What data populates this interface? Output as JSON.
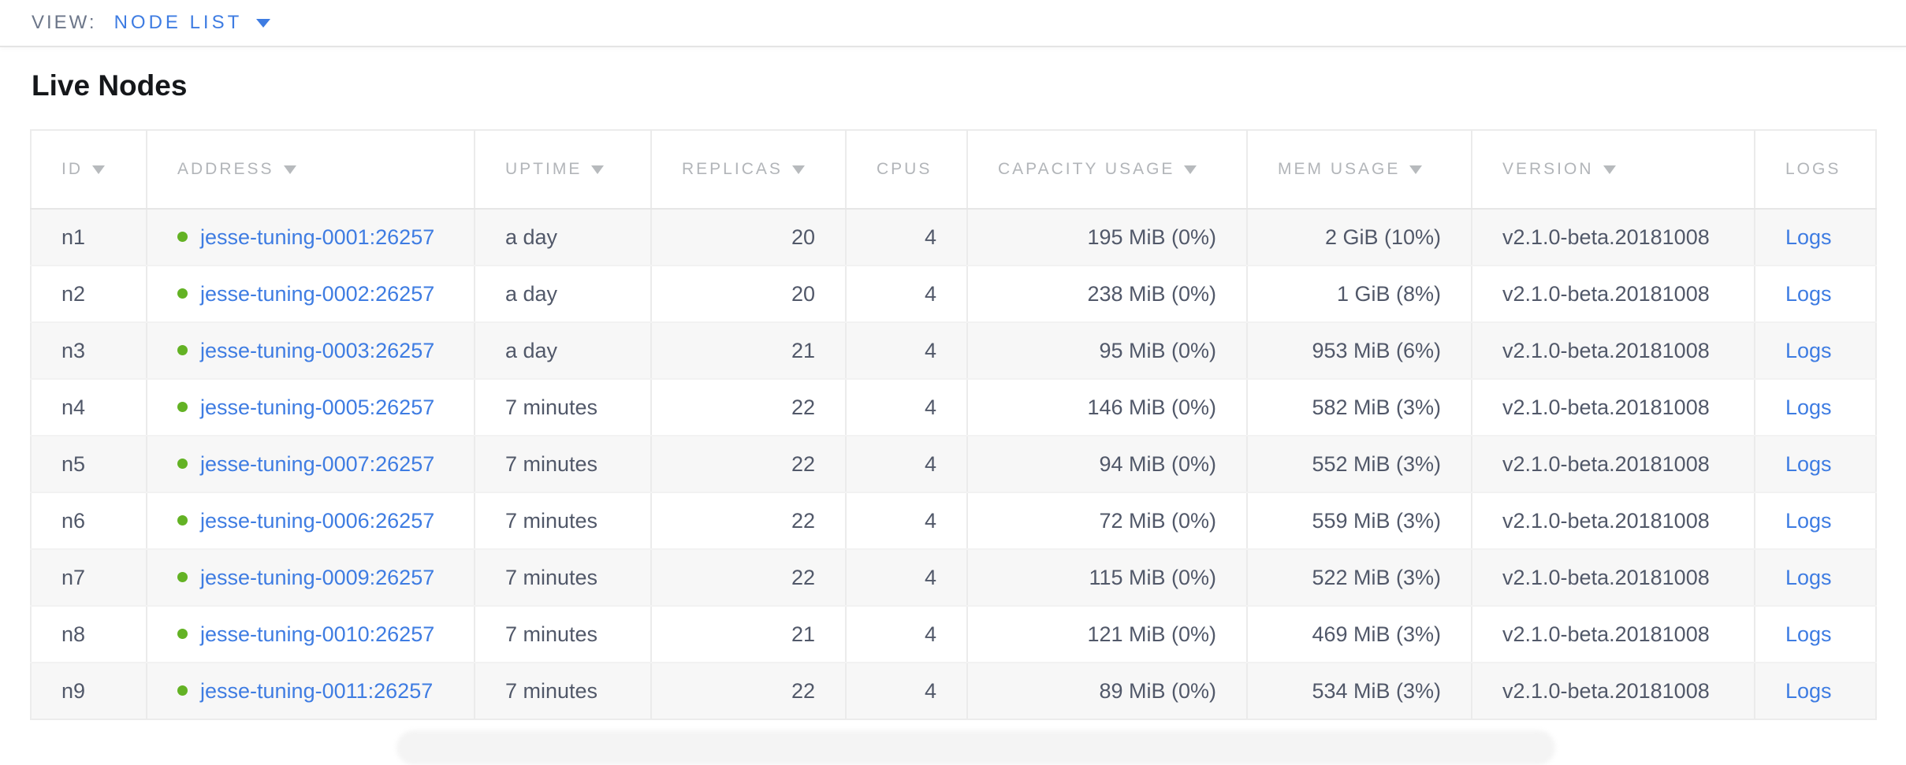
{
  "view_bar": {
    "label": "VIEW:",
    "selected": "NODE LIST"
  },
  "page": {
    "title": "Live Nodes"
  },
  "colors": {
    "accent_blue": "#3e7ce2",
    "healthy_green": "#63b224",
    "header_gray": "#b2b5b9",
    "body_text": "#515869"
  },
  "table": {
    "columns": [
      {
        "key": "id",
        "label": "ID",
        "sortable": true,
        "align": "left"
      },
      {
        "key": "address",
        "label": "ADDRESS",
        "sortable": true,
        "align": "left"
      },
      {
        "key": "uptime",
        "label": "UPTIME",
        "sortable": true,
        "align": "left"
      },
      {
        "key": "replicas",
        "label": "REPLICAS",
        "sortable": true,
        "align": "right"
      },
      {
        "key": "cpus",
        "label": "CPUS",
        "sortable": false,
        "align": "right"
      },
      {
        "key": "capacity",
        "label": "CAPACITY USAGE",
        "sortable": true,
        "align": "right"
      },
      {
        "key": "mem",
        "label": "MEM USAGE",
        "sortable": true,
        "align": "right"
      },
      {
        "key": "version",
        "label": "VERSION",
        "sortable": true,
        "align": "left"
      },
      {
        "key": "logs",
        "label": "LOGS",
        "sortable": false,
        "align": "left"
      }
    ],
    "rows": [
      {
        "id": "n1",
        "address": "jesse-tuning-0001:26257",
        "status": "healthy",
        "uptime": "a day",
        "replicas": 20,
        "cpus": 4,
        "capacity": "195 MiB (0%)",
        "mem": "2 GiB (10%)",
        "version": "v2.1.0-beta.20181008",
        "logs": "Logs"
      },
      {
        "id": "n2",
        "address": "jesse-tuning-0002:26257",
        "status": "healthy",
        "uptime": "a day",
        "replicas": 20,
        "cpus": 4,
        "capacity": "238 MiB (0%)",
        "mem": "1 GiB (8%)",
        "version": "v2.1.0-beta.20181008",
        "logs": "Logs"
      },
      {
        "id": "n3",
        "address": "jesse-tuning-0003:26257",
        "status": "healthy",
        "uptime": "a day",
        "replicas": 21,
        "cpus": 4,
        "capacity": "95 MiB (0%)",
        "mem": "953 MiB (6%)",
        "version": "v2.1.0-beta.20181008",
        "logs": "Logs"
      },
      {
        "id": "n4",
        "address": "jesse-tuning-0005:26257",
        "status": "healthy",
        "uptime": "7 minutes",
        "replicas": 22,
        "cpus": 4,
        "capacity": "146 MiB (0%)",
        "mem": "582 MiB (3%)",
        "version": "v2.1.0-beta.20181008",
        "logs": "Logs"
      },
      {
        "id": "n5",
        "address": "jesse-tuning-0007:26257",
        "status": "healthy",
        "uptime": "7 minutes",
        "replicas": 22,
        "cpus": 4,
        "capacity": "94 MiB (0%)",
        "mem": "552 MiB (3%)",
        "version": "v2.1.0-beta.20181008",
        "logs": "Logs"
      },
      {
        "id": "n6",
        "address": "jesse-tuning-0006:26257",
        "status": "healthy",
        "uptime": "7 minutes",
        "replicas": 22,
        "cpus": 4,
        "capacity": "72 MiB (0%)",
        "mem": "559 MiB (3%)",
        "version": "v2.1.0-beta.20181008",
        "logs": "Logs"
      },
      {
        "id": "n7",
        "address": "jesse-tuning-0009:26257",
        "status": "healthy",
        "uptime": "7 minutes",
        "replicas": 22,
        "cpus": 4,
        "capacity": "115 MiB (0%)",
        "mem": "522 MiB (3%)",
        "version": "v2.1.0-beta.20181008",
        "logs": "Logs"
      },
      {
        "id": "n8",
        "address": "jesse-tuning-0010:26257",
        "status": "healthy",
        "uptime": "7 minutes",
        "replicas": 21,
        "cpus": 4,
        "capacity": "121 MiB (0%)",
        "mem": "469 MiB (3%)",
        "version": "v2.1.0-beta.20181008",
        "logs": "Logs"
      },
      {
        "id": "n9",
        "address": "jesse-tuning-0011:26257",
        "status": "healthy",
        "uptime": "7 minutes",
        "replicas": 22,
        "cpus": 4,
        "capacity": "89 MiB (0%)",
        "mem": "534 MiB (3%)",
        "version": "v2.1.0-beta.20181008",
        "logs": "Logs"
      }
    ]
  }
}
